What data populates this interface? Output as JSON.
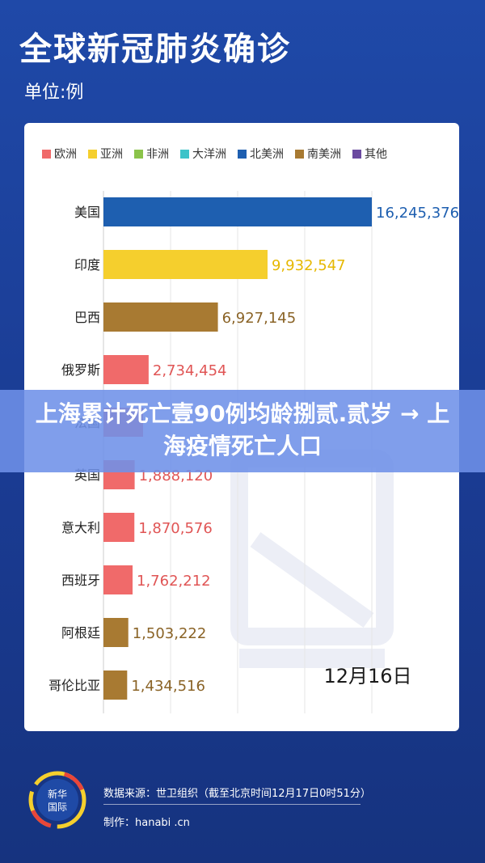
{
  "header": {
    "title": "全球新冠肺炎确诊",
    "unit": "单位:例"
  },
  "legend": [
    {
      "label": "欧洲",
      "color": "#f06a6a"
    },
    {
      "label": "亚洲",
      "color": "#f5cf2d"
    },
    {
      "label": "非洲",
      "color": "#8bc34a"
    },
    {
      "label": "大洋洲",
      "color": "#3cc3c9"
    },
    {
      "label": "北美洲",
      "color": "#1e5fb0"
    },
    {
      "label": "南美洲",
      "color": "#a87a32"
    },
    {
      "label": "其他",
      "color": "#6b4aa0"
    }
  ],
  "chart_data": {
    "type": "bar",
    "orientation": "horizontal",
    "title": "全球新冠肺炎确诊",
    "unit": "单位:例",
    "date_label": "12月16日",
    "xlim": [
      0,
      16245376
    ],
    "categories": [
      "美国",
      "印度",
      "巴西",
      "俄罗斯",
      "法国",
      "英国",
      "意大利",
      "西班牙",
      "阿根廷",
      "哥伦比亚"
    ],
    "values": [
      16245376,
      9932547,
      6927145,
      2734454,
      2400000,
      1888120,
      1870576,
      1762212,
      1503222,
      1434516
    ],
    "value_labels": [
      "16,245,376",
      "9,932,547",
      "6,927,145",
      "2,734,454",
      "",
      "1,888,120",
      "1,870,576",
      "1,762,212",
      "1,503,222",
      "1,434,516"
    ],
    "region_colors": [
      "#1e5fb0",
      "#f5cf2d",
      "#a87a32",
      "#f06a6a",
      "#f06a6a",
      "#f06a6a",
      "#f06a6a",
      "#f06a6a",
      "#a87a32",
      "#a87a32"
    ],
    "label_colors": [
      "#1e5fb0",
      "#e6b800",
      "#8a6326",
      "#e05555",
      "#e05555",
      "#e05555",
      "#e05555",
      "#e05555",
      "#8a6326",
      "#8a6326"
    ],
    "grid": true,
    "legend_position": "top"
  },
  "overlay": {
    "text": "上海累计死亡壹90例均龄捌贰.贰岁 → 上海疫情死亡人口"
  },
  "footer": {
    "logo_text": "新华国际",
    "source": "数据来源：世卫组织（截至北京时间12月17日0时51分）",
    "maker": "制作：hanabi .cn"
  }
}
